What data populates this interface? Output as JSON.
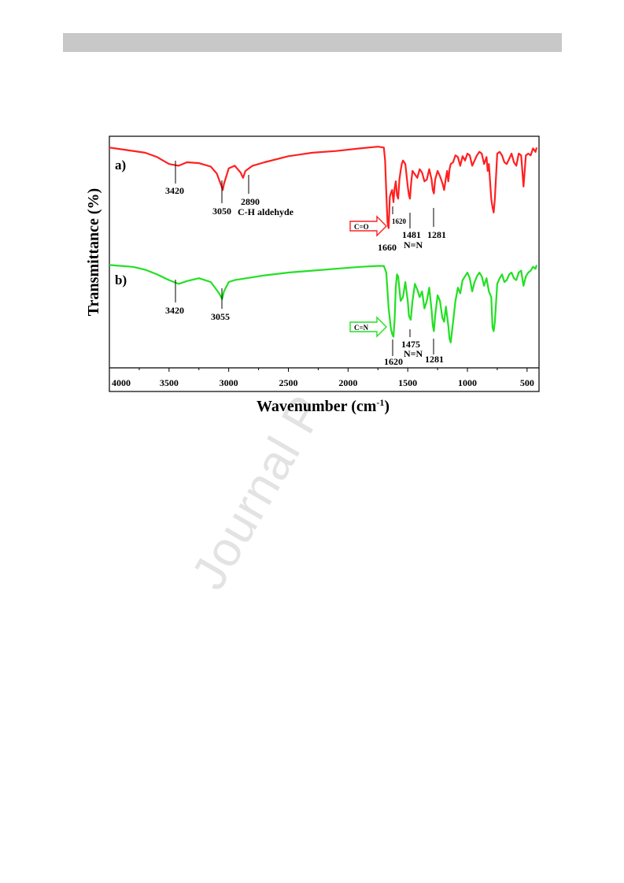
{
  "header_bar": "",
  "watermark": "Journal P",
  "chart_data": {
    "type": "line",
    "xlabel": "Wavenumber (cm",
    "xlabel_sup": "-1",
    "xlabel_end": ")",
    "ylabel": "Transmittance (%)",
    "xlim": [
      4000,
      400
    ],
    "x_reversed": true,
    "x_ticks": [
      4000,
      3500,
      3000,
      2500,
      2000,
      1500,
      1000,
      500
    ],
    "grid": false,
    "legend": "none",
    "series": [
      {
        "panel": "a)",
        "color": "#ff2020",
        "points": [
          [
            4000,
            0.03
          ],
          [
            3900,
            0.05
          ],
          [
            3700,
            0.09
          ],
          [
            3600,
            0.14
          ],
          [
            3500,
            0.22
          ],
          [
            3420,
            0.24
          ],
          [
            3350,
            0.2
          ],
          [
            3250,
            0.21
          ],
          [
            3150,
            0.25
          ],
          [
            3100,
            0.33
          ],
          [
            3060,
            0.48
          ],
          [
            3050,
            0.52
          ],
          [
            3040,
            0.45
          ],
          [
            3000,
            0.27
          ],
          [
            2950,
            0.24
          ],
          [
            2900,
            0.32
          ],
          [
            2880,
            0.38
          ],
          [
            2860,
            0.3
          ],
          [
            2800,
            0.24
          ],
          [
            2700,
            0.2
          ],
          [
            2500,
            0.13
          ],
          [
            2300,
            0.09
          ],
          [
            2100,
            0.07
          ],
          [
            1900,
            0.04
          ],
          [
            1750,
            0.02
          ],
          [
            1700,
            0.03
          ],
          [
            1690,
            0.18
          ],
          [
            1680,
            0.55
          ],
          [
            1670,
            0.88
          ],
          [
            1665,
            0.93
          ],
          [
            1660,
            0.96
          ],
          [
            1650,
            0.6
          ],
          [
            1640,
            0.55
          ],
          [
            1630,
            0.52
          ],
          [
            1620,
            0.66
          ],
          [
            1610,
            0.5
          ],
          [
            1600,
            0.42
          ],
          [
            1590,
            0.58
          ],
          [
            1580,
            0.62
          ],
          [
            1570,
            0.4
          ],
          [
            1560,
            0.3
          ],
          [
            1550,
            0.22
          ],
          [
            1540,
            0.18
          ],
          [
            1520,
            0.22
          ],
          [
            1500,
            0.48
          ],
          [
            1490,
            0.58
          ],
          [
            1481,
            0.62
          ],
          [
            1470,
            0.42
          ],
          [
            1460,
            0.3
          ],
          [
            1440,
            0.34
          ],
          [
            1420,
            0.38
          ],
          [
            1400,
            0.28
          ],
          [
            1380,
            0.32
          ],
          [
            1360,
            0.42
          ],
          [
            1340,
            0.4
          ],
          [
            1320,
            0.28
          ],
          [
            1300,
            0.4
          ],
          [
            1290,
            0.52
          ],
          [
            1281,
            0.56
          ],
          [
            1270,
            0.4
          ],
          [
            1250,
            0.3
          ],
          [
            1230,
            0.36
          ],
          [
            1210,
            0.44
          ],
          [
            1195,
            0.52
          ],
          [
            1180,
            0.38
          ],
          [
            1170,
            0.3
          ],
          [
            1160,
            0.42
          ],
          [
            1150,
            0.28
          ],
          [
            1140,
            0.22
          ],
          [
            1120,
            0.2
          ],
          [
            1100,
            0.12
          ],
          [
            1080,
            0.14
          ],
          [
            1060,
            0.24
          ],
          [
            1040,
            0.13
          ],
          [
            1020,
            0.18
          ],
          [
            1000,
            0.1
          ],
          [
            980,
            0.12
          ],
          [
            960,
            0.24
          ],
          [
            940,
            0.18
          ],
          [
            920,
            0.12
          ],
          [
            900,
            0.08
          ],
          [
            880,
            0.1
          ],
          [
            860,
            0.22
          ],
          [
            840,
            0.14
          ],
          [
            830,
            0.3
          ],
          [
            820,
            0.22
          ],
          [
            800,
            0.62
          ],
          [
            790,
            0.72
          ],
          [
            780,
            0.78
          ],
          [
            770,
            0.62
          ],
          [
            750,
            0.1
          ],
          [
            730,
            0.08
          ],
          [
            710,
            0.12
          ],
          [
            690,
            0.2
          ],
          [
            670,
            0.22
          ],
          [
            650,
            0.16
          ],
          [
            630,
            0.1
          ],
          [
            610,
            0.2
          ],
          [
            590,
            0.24
          ],
          [
            570,
            0.1
          ],
          [
            550,
            0.12
          ],
          [
            530,
            0.48
          ],
          [
            520,
            0.3
          ],
          [
            510,
            0.12
          ],
          [
            490,
            0.1
          ],
          [
            470,
            0.12
          ],
          [
            450,
            0.04
          ],
          [
            430,
            0.08
          ],
          [
            420,
            0.03
          ]
        ]
      },
      {
        "panel": "b)",
        "color": "#22e022",
        "points": [
          [
            4000,
            0.02
          ],
          [
            3900,
            0.03
          ],
          [
            3800,
            0.04
          ],
          [
            3700,
            0.07
          ],
          [
            3600,
            0.12
          ],
          [
            3500,
            0.18
          ],
          [
            3420,
            0.22
          ],
          [
            3350,
            0.19
          ],
          [
            3250,
            0.16
          ],
          [
            3150,
            0.2
          ],
          [
            3080,
            0.32
          ],
          [
            3055,
            0.38
          ],
          [
            3040,
            0.3
          ],
          [
            3000,
            0.2
          ],
          [
            2950,
            0.18
          ],
          [
            2850,
            0.16
          ],
          [
            2700,
            0.13
          ],
          [
            2500,
            0.1
          ],
          [
            2300,
            0.08
          ],
          [
            2100,
            0.06
          ],
          [
            1900,
            0.04
          ],
          [
            1750,
            0.03
          ],
          [
            1700,
            0.03
          ],
          [
            1680,
            0.1
          ],
          [
            1660,
            0.48
          ],
          [
            1640,
            0.7
          ],
          [
            1630,
            0.75
          ],
          [
            1620,
            0.78
          ],
          [
            1610,
            0.6
          ],
          [
            1600,
            0.25
          ],
          [
            1590,
            0.12
          ],
          [
            1580,
            0.14
          ],
          [
            1560,
            0.4
          ],
          [
            1540,
            0.36
          ],
          [
            1520,
            0.2
          ],
          [
            1500,
            0.4
          ],
          [
            1490,
            0.56
          ],
          [
            1475,
            0.6
          ],
          [
            1460,
            0.4
          ],
          [
            1440,
            0.22
          ],
          [
            1420,
            0.28
          ],
          [
            1400,
            0.36
          ],
          [
            1380,
            0.3
          ],
          [
            1360,
            0.48
          ],
          [
            1340,
            0.4
          ],
          [
            1320,
            0.26
          ],
          [
            1300,
            0.5
          ],
          [
            1290,
            0.66
          ],
          [
            1281,
            0.72
          ],
          [
            1270,
            0.56
          ],
          [
            1250,
            0.34
          ],
          [
            1230,
            0.4
          ],
          [
            1210,
            0.58
          ],
          [
            1195,
            0.62
          ],
          [
            1180,
            0.46
          ],
          [
            1160,
            0.66
          ],
          [
            1150,
            0.8
          ],
          [
            1140,
            0.84
          ],
          [
            1120,
            0.62
          ],
          [
            1100,
            0.4
          ],
          [
            1080,
            0.26
          ],
          [
            1060,
            0.32
          ],
          [
            1040,
            0.18
          ],
          [
            1020,
            0.14
          ],
          [
            1000,
            0.1
          ],
          [
            980,
            0.16
          ],
          [
            960,
            0.3
          ],
          [
            940,
            0.2
          ],
          [
            920,
            0.14
          ],
          [
            900,
            0.1
          ],
          [
            880,
            0.14
          ],
          [
            860,
            0.24
          ],
          [
            840,
            0.16
          ],
          [
            820,
            0.3
          ],
          [
            800,
            0.36
          ],
          [
            790,
            0.68
          ],
          [
            780,
            0.72
          ],
          [
            770,
            0.62
          ],
          [
            750,
            0.22
          ],
          [
            730,
            0.16
          ],
          [
            710,
            0.12
          ],
          [
            690,
            0.2
          ],
          [
            670,
            0.18
          ],
          [
            650,
            0.12
          ],
          [
            630,
            0.1
          ],
          [
            610,
            0.16
          ],
          [
            590,
            0.18
          ],
          [
            570,
            0.1
          ],
          [
            550,
            0.08
          ],
          [
            530,
            0.24
          ],
          [
            510,
            0.14
          ],
          [
            490,
            0.1
          ],
          [
            470,
            0.08
          ],
          [
            450,
            0.04
          ],
          [
            430,
            0.06
          ],
          [
            420,
            0.02
          ]
        ]
      }
    ],
    "annotations": {
      "a": {
        "a3420": "3420",
        "a3050": "3050",
        "a2890": "2890",
        "a2890_label": "C-H aldehyde",
        "a1660": "1660",
        "a1620": "1620",
        "a1481": "1481",
        "a1481_label": "N=N",
        "a1281": "1281",
        "arrow": "C=O"
      },
      "b": {
        "b3420": "3420",
        "b3055": "3055",
        "b1620": "1620",
        "b1475": "1475",
        "b1475_label": "N=N",
        "b1281": "1281",
        "arrow": "C=N"
      }
    }
  }
}
